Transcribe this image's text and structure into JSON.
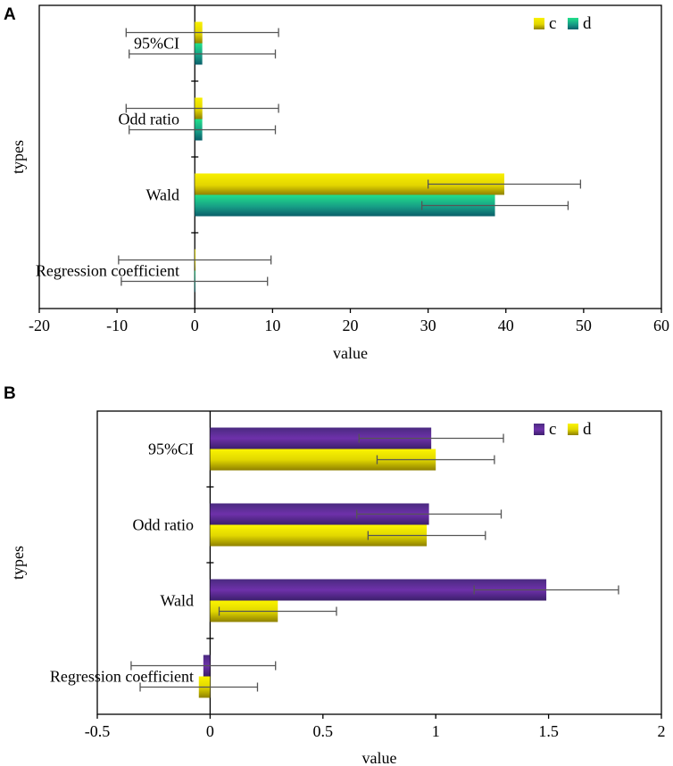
{
  "chart_data": [
    {
      "panel": "A",
      "type": "bar",
      "orientation": "horizontal",
      "categories": [
        "Regression coefficient",
        "Wald",
        "Odd ratio",
        "95%CI"
      ],
      "series": [
        {
          "name": "c",
          "values": [
            0.0,
            39.8,
            0.97,
            0.97
          ],
          "errors": [
            9.8,
            9.8,
            9.8,
            9.8
          ]
        },
        {
          "name": "d",
          "values": [
            -0.05,
            38.6,
            0.96,
            0.96
          ],
          "errors": [
            9.4,
            9.4,
            9.4,
            9.4
          ]
        }
      ],
      "xlabel": "value",
      "ylabel": "types",
      "xlim": [
        -20,
        60
      ],
      "xticks": [
        "-20",
        "-10",
        "0",
        "10",
        "20",
        "30",
        "40",
        "50",
        "60"
      ],
      "colors": {
        "c": "#dccf00",
        "d": "#158a80"
      },
      "legend": "top-right"
    },
    {
      "panel": "B",
      "type": "bar",
      "orientation": "horizontal",
      "categories": [
        "Regression coefficient",
        "Wald",
        "Odd ratio",
        "95%CI"
      ],
      "series": [
        {
          "name": "c",
          "values": [
            -0.03,
            1.49,
            0.97,
            0.98
          ],
          "errors": [
            0.32,
            0.32,
            0.32,
            0.32
          ]
        },
        {
          "name": "d",
          "values": [
            -0.05,
            0.3,
            0.96,
            1.0
          ],
          "errors": [
            0.26,
            0.26,
            0.26,
            0.26
          ]
        }
      ],
      "xlabel": "value",
      "ylabel": "types",
      "xlim": [
        -0.5,
        2
      ],
      "xticks": [
        "-0.5",
        "0",
        "0.5",
        "1",
        "1.5",
        "2"
      ],
      "colors": {
        "c": "#6a2fa6",
        "d": "#d8cf0a"
      },
      "legend": "top-right"
    }
  ]
}
